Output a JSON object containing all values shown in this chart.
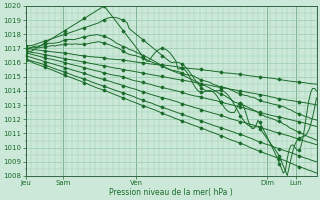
{
  "title": "",
  "xlabel": "Pression niveau de la mer( hPa )",
  "background_color": "#cce8d8",
  "plot_bg_color": "#cce8d8",
  "grid_color": "#99ccb0",
  "line_color": "#1a6b2a",
  "marker_color": "#1a6b2a",
  "ylim": [
    1008,
    1020
  ],
  "yticks": [
    1008,
    1009,
    1010,
    1011,
    1012,
    1013,
    1014,
    1015,
    1016,
    1017,
    1018,
    1019,
    1020
  ],
  "xtick_positions": [
    0.0,
    0.13,
    0.38,
    0.83,
    0.93
  ],
  "xtick_labels": [
    "Jeu",
    "Sam",
    "Ven",
    "Dim",
    "Lun"
  ]
}
